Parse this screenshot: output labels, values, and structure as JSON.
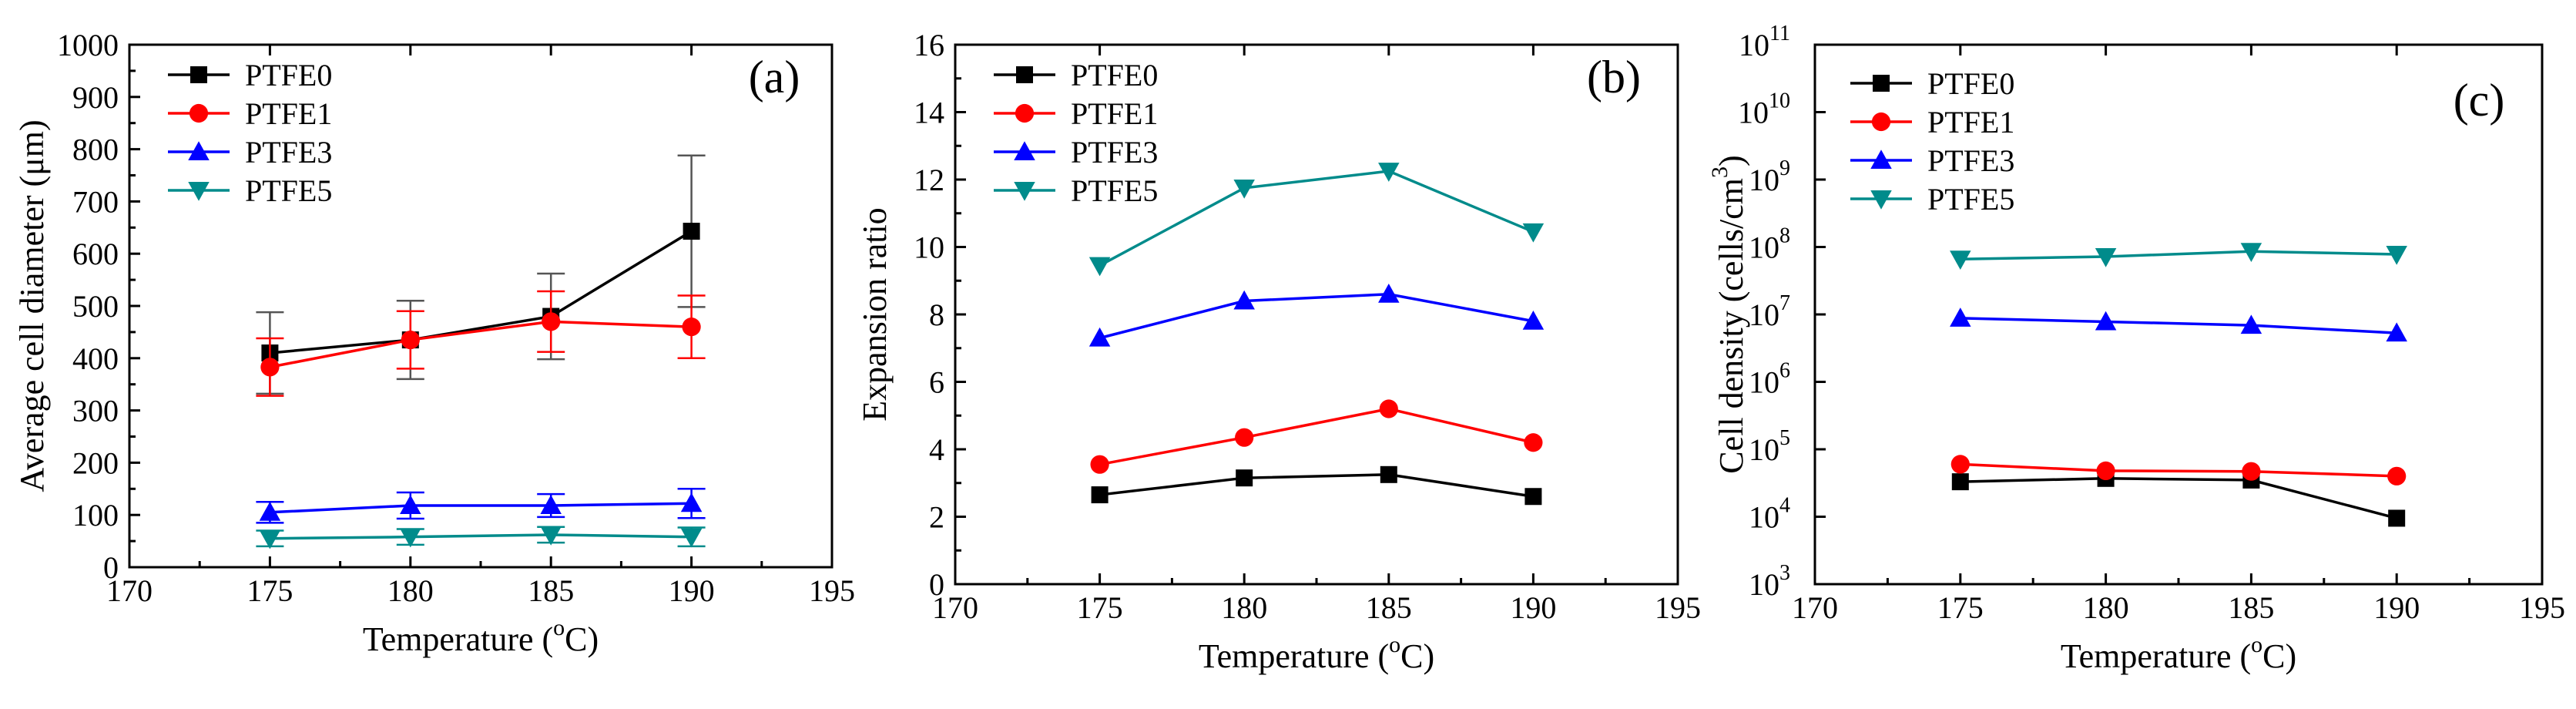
{
  "chart_data": [
    {
      "type": "line",
      "panel_label": "(a)",
      "xlabel_parts": [
        "Temperature (",
        "o",
        "C)"
      ],
      "ylabel": "Average cell diameter (μm)",
      "x": [
        175,
        180,
        185,
        190
      ],
      "xlim": [
        170,
        195
      ],
      "xticks": [
        "170",
        "175",
        "180",
        "185",
        "190",
        "195"
      ],
      "ylim": [
        0,
        1000
      ],
      "yticks": [
        "0",
        "100",
        "200",
        "300",
        "400",
        "500",
        "600",
        "700",
        "800",
        "900",
        "1000"
      ],
      "yscale": "linear",
      "legend_position": "top-left",
      "series": [
        {
          "name": "PTFE0",
          "color": "#000000",
          "marker": "square",
          "values": [
            410,
            435,
            480,
            643
          ],
          "errors": [
            78,
            75,
            82,
            145
          ]
        },
        {
          "name": "PTFE1",
          "color": "#ff0000",
          "marker": "circle",
          "values": [
            383,
            435,
            470,
            460
          ],
          "errors": [
            55,
            55,
            58,
            60
          ]
        },
        {
          "name": "PTFE3",
          "color": "#0000ff",
          "marker": "triangle-up",
          "values": [
            105,
            118,
            118,
            122
          ],
          "errors": [
            20,
            25,
            22,
            28
          ]
        },
        {
          "name": "PTFE5",
          "color": "#008b8b",
          "marker": "triangle-down",
          "values": [
            55,
            58,
            62,
            58
          ],
          "errors": [
            15,
            15,
            15,
            18
          ]
        }
      ]
    },
    {
      "type": "line",
      "panel_label": "(b)",
      "xlabel_parts": [
        "Temperature (",
        "o",
        "C)"
      ],
      "ylabel": "Expansion ratio",
      "x": [
        175,
        180,
        185,
        190
      ],
      "xlim": [
        170,
        195
      ],
      "xticks": [
        "170",
        "175",
        "180",
        "185",
        "190",
        "195"
      ],
      "ylim": [
        0,
        16
      ],
      "yticks": [
        "0",
        "2",
        "4",
        "6",
        "8",
        "10",
        "12",
        "14",
        "16"
      ],
      "yscale": "linear",
      "legend_position": "top-left",
      "series": [
        {
          "name": "PTFE0",
          "color": "#000000",
          "marker": "square",
          "values": [
            2.65,
            3.15,
            3.25,
            2.6
          ]
        },
        {
          "name": "PTFE1",
          "color": "#ff0000",
          "marker": "circle",
          "values": [
            3.55,
            4.35,
            5.2,
            4.2
          ]
        },
        {
          "name": "PTFE3",
          "color": "#0000ff",
          "marker": "triangle-up",
          "values": [
            7.3,
            8.4,
            8.6,
            7.8
          ]
        },
        {
          "name": "PTFE5",
          "color": "#008b8b",
          "marker": "triangle-down",
          "values": [
            9.45,
            11.75,
            12.25,
            10.45
          ]
        }
      ]
    },
    {
      "type": "line",
      "panel_label": "(c)",
      "xlabel_parts": [
        "Temperature (",
        "o",
        "C)"
      ],
      "ylabel_parts": [
        "Cell density (cells/cm",
        "3",
        ")"
      ],
      "x": [
        175,
        180,
        185,
        190
      ],
      "xlim": [
        170,
        195
      ],
      "xticks": [
        "170",
        "175",
        "180",
        "185",
        "190",
        "195"
      ],
      "ylim_log10": [
        3,
        11
      ],
      "ytick_base": "10",
      "ytick_exponents": [
        "3",
        "4",
        "5",
        "6",
        "7",
        "8",
        "9",
        "10",
        "11"
      ],
      "yscale": "log",
      "legend_position": "top-left",
      "series": [
        {
          "name": "PTFE0",
          "color": "#000000",
          "marker": "square",
          "values": [
            33000,
            37000,
            35000,
            9500
          ]
        },
        {
          "name": "PTFE1",
          "color": "#ff0000",
          "marker": "circle",
          "values": [
            60000,
            48000,
            47000,
            40000
          ]
        },
        {
          "name": "PTFE3",
          "color": "#0000ff",
          "marker": "triangle-up",
          "values": [
            8800000,
            7800000,
            6900000,
            5300000
          ]
        },
        {
          "name": "PTFE5",
          "color": "#008b8b",
          "marker": "triangle-down",
          "values": [
            66000000,
            72000000,
            86000000,
            78000000
          ]
        }
      ]
    }
  ]
}
